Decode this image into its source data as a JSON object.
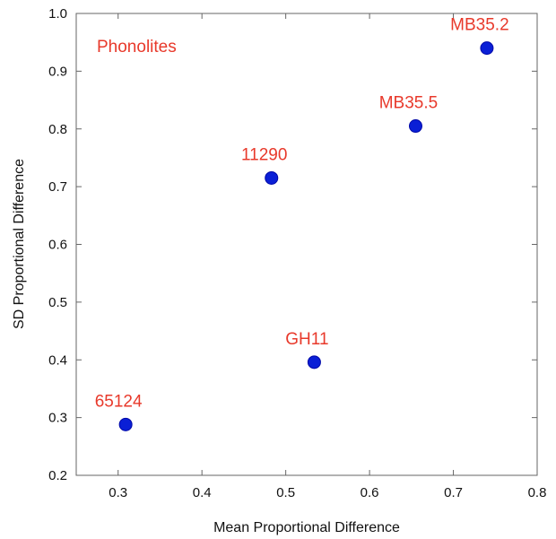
{
  "chart_data": {
    "type": "scatter",
    "annotation": "Phonolites",
    "xlabel": "Mean Proportional Difference",
    "ylabel": "SD Proportional Difference",
    "xlim": [
      0.25,
      0.8
    ],
    "ylim": [
      0.2,
      1.0
    ],
    "x_ticks": [
      "0.3",
      "0.4",
      "0.5",
      "0.6",
      "0.7",
      "0.8"
    ],
    "y_ticks": [
      "0.2",
      "0.3",
      "0.4",
      "0.5",
      "0.6",
      "0.7",
      "0.8",
      "0.9",
      "1.0"
    ],
    "grid": false,
    "points": [
      {
        "label": "MB35.2",
        "x": 0.74,
        "y": 0.94
      },
      {
        "label": "MB35.5",
        "x": 0.655,
        "y": 0.805
      },
      {
        "label": "11290",
        "x": 0.483,
        "y": 0.715
      },
      {
        "label": "GH11",
        "x": 0.534,
        "y": 0.396
      },
      {
        "label": "65124",
        "x": 0.309,
        "y": 0.288
      }
    ],
    "colors": {
      "marker": "#0a1fd6",
      "label": "#e8392b",
      "axis": "#666666"
    }
  }
}
